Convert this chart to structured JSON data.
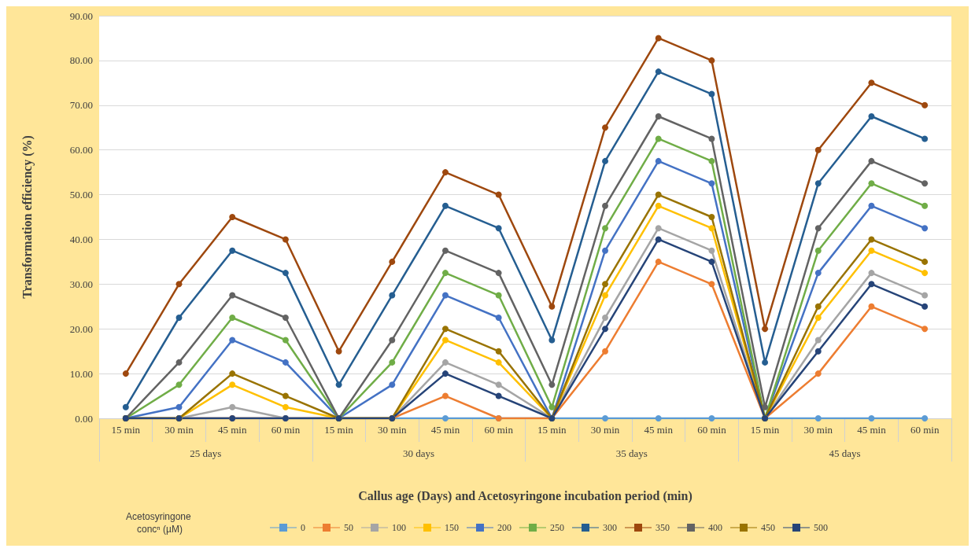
{
  "chart_data": {
    "type": "line",
    "xlabel": "Callus age (Days) and Acetosyringone incubation period (min)",
    "ylabel": "Transformation efficiency (%)",
    "legend_title": "Acetosyringone concⁿ (µM)",
    "categories": [
      "15 min",
      "30 min",
      "45 min",
      "60 min",
      "15 min",
      "30 min",
      "45 min",
      "60 min",
      "15 min",
      "30 min",
      "45 min",
      "60 min",
      "15 min",
      "30 min",
      "45 min",
      "60 min"
    ],
    "annotations": [
      "25 days",
      "30 days",
      "35 days",
      "45 days"
    ],
    "ylim": [
      0,
      90
    ],
    "yticks": [
      {
        "value": 0,
        "label": "0.00"
      },
      {
        "value": 10,
        "label": "10.00"
      },
      {
        "value": 20,
        "label": "20.00"
      },
      {
        "value": 30,
        "label": "30.00"
      },
      {
        "value": 40,
        "label": "40.00"
      },
      {
        "value": 50,
        "label": "50.00"
      },
      {
        "value": 60,
        "label": "60.00"
      },
      {
        "value": 70,
        "label": "70.00"
      },
      {
        "value": 80,
        "label": "80.00"
      },
      {
        "value": 90,
        "label": "90.00"
      }
    ],
    "grid": "y",
    "legend": "bottom",
    "marker": "circle",
    "line_style": "solid",
    "series": [
      {
        "name": "0",
        "color": "#5b9bd5",
        "values": [
          0,
          0,
          0,
          0,
          0,
          0,
          0,
          0,
          0,
          0,
          0,
          0,
          0,
          0,
          0,
          0
        ]
      },
      {
        "name": "50",
        "color": "#ed7d31",
        "values": [
          0,
          0,
          0,
          0,
          0,
          0,
          5,
          0,
          0,
          15,
          35,
          30,
          0,
          10,
          25,
          20
        ]
      },
      {
        "name": "100",
        "color": "#a5a5a5",
        "values": [
          0,
          0,
          2.5,
          0,
          0,
          0,
          12.5,
          7.5,
          0,
          22.5,
          42.5,
          37.5,
          0,
          17.5,
          32.5,
          27.5
        ]
      },
      {
        "name": "150",
        "color": "#ffc000",
        "values": [
          0,
          0,
          7.5,
          2.5,
          0,
          0,
          17.5,
          12.5,
          0,
          27.5,
          47.5,
          42.5,
          0,
          22.5,
          37.5,
          32.5
        ]
      },
      {
        "name": "200",
        "color": "#4472c4",
        "values": [
          0,
          2.5,
          17.5,
          12.5,
          0,
          7.5,
          27.5,
          22.5,
          0,
          37.5,
          57.5,
          52.5,
          0,
          32.5,
          47.5,
          42.5
        ]
      },
      {
        "name": "250",
        "color": "#70ad47",
        "values": [
          0,
          7.5,
          22.5,
          17.5,
          0,
          12.5,
          32.5,
          27.5,
          2.5,
          42.5,
          62.5,
          57.5,
          0,
          37.5,
          52.5,
          47.5
        ]
      },
      {
        "name": "300",
        "color": "#255e91",
        "values": [
          2.5,
          22.5,
          37.5,
          32.5,
          7.5,
          27.5,
          47.5,
          42.5,
          17.5,
          57.5,
          77.5,
          72.5,
          12.5,
          52.5,
          67.5,
          62.5
        ]
      },
      {
        "name": "350",
        "color": "#9e480e",
        "values": [
          10,
          30,
          45,
          40,
          15,
          35,
          55,
          50,
          25,
          65,
          85,
          80,
          20,
          60,
          75,
          70
        ]
      },
      {
        "name": "400",
        "color": "#636363",
        "values": [
          0,
          12.5,
          27.5,
          22.5,
          0,
          17.5,
          37.5,
          32.5,
          7.5,
          47.5,
          67.5,
          62.5,
          2.5,
          42.5,
          57.5,
          52.5
        ]
      },
      {
        "name": "450",
        "color": "#997300",
        "values": [
          0,
          0,
          10,
          5,
          0,
          0,
          20,
          15,
          0,
          30,
          50,
          45,
          0,
          25,
          40,
          35
        ]
      },
      {
        "name": "500",
        "color": "#264478",
        "values": [
          0,
          0,
          0,
          0,
          0,
          0,
          10,
          5,
          0,
          20,
          40,
          35,
          0,
          15,
          30,
          25
        ]
      }
    ]
  }
}
